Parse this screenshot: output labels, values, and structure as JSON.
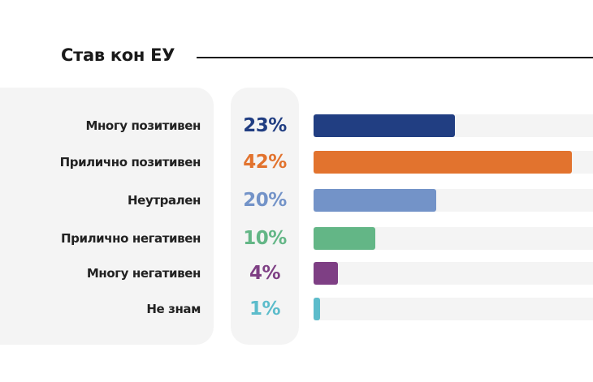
{
  "chart_data": {
    "type": "bar",
    "orientation": "horizontal",
    "title": "Став кон ЕУ",
    "categories": [
      "Многу позитивен",
      "Прилично позитивен",
      "Неутрален",
      "Прилично негативен",
      "Многу негативен",
      "Не знам"
    ],
    "values": [
      23,
      42,
      20,
      10,
      4,
      1
    ],
    "value_labels": [
      "23%",
      "42%",
      "20%",
      "10%",
      "4%",
      "1%"
    ],
    "colors": [
      "#213e82",
      "#e2732e",
      "#7393c8",
      "#63b686",
      "#7e3f84",
      "#5cbccb"
    ],
    "xlim": [
      0,
      100
    ],
    "grid": false
  }
}
